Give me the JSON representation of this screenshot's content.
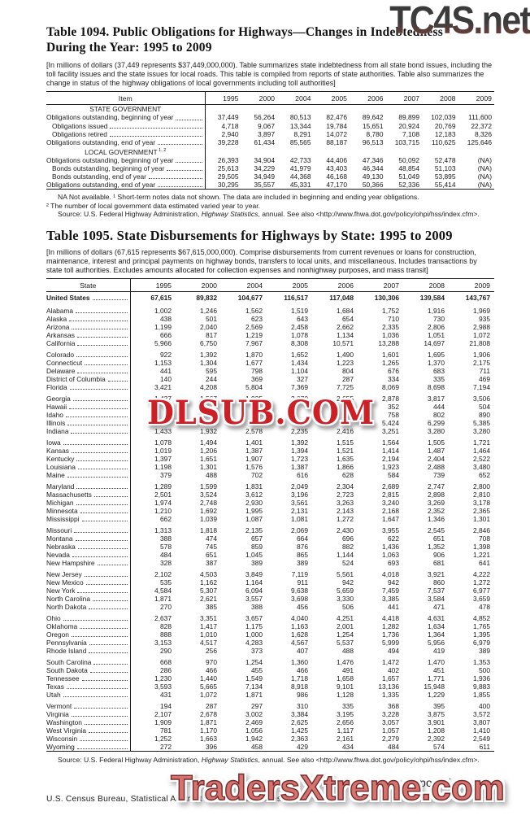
{
  "watermarks": {
    "top_right": "TC4S.net",
    "center": "DLSUB.COM",
    "bottom": "TradersXtreme.com"
  },
  "table1094": {
    "title_line1": "Table 1094. Public Obligations for Highways—Changes in Indebtedness",
    "title_line2": "During the Year: 1995 to 2009",
    "note": "[In millions of dollars (37,449 represents $37,449,000,000). Table summarizes state indebtedness from all state bond issues, including the toll facility issues and the state issues for local roads. This table is compiled from reports of state authorities. Table also summarizes the change in status of the highway obligations of local governments including toll authorities]",
    "stub_header": "Item",
    "years": [
      "1995",
      "2000",
      "2004",
      "2005",
      "2006",
      "2007",
      "2008",
      "2009"
    ],
    "rows": [
      {
        "label": "STATE GOVERNMENT",
        "type": "section",
        "values": []
      },
      {
        "label": "Obligations outstanding, beginning of year",
        "indent": 0,
        "values": [
          "37,449",
          "56,264",
          "80,513",
          "82,476",
          "89,642",
          "89,899",
          "102,039",
          "111,600"
        ]
      },
      {
        "label": "Obligations issued",
        "indent": 1,
        "values": [
          "4,718",
          "9,067",
          "13,344",
          "19,784",
          "15,651",
          "20,924",
          "20,769",
          "22,372"
        ]
      },
      {
        "label": "Obligations retired",
        "indent": 1,
        "values": [
          "2,940",
          "3,897",
          "8,291",
          "14,072",
          "8,780",
          "7,108",
          "12,183",
          "8,326"
        ]
      },
      {
        "label": "Obligations outstanding, end of year",
        "indent": 0,
        "values": [
          "39,228",
          "61,434",
          "85,565",
          "88,187",
          "96,513",
          "103,715",
          "110,625",
          "125,646"
        ]
      },
      {
        "label": "LOCAL GOVERNMENT",
        "sup": "1, 2",
        "type": "section",
        "values": []
      },
      {
        "label": "Obligations outstanding, beginning of year",
        "indent": 0,
        "values": [
          "26,393",
          "34,904",
          "42,733",
          "44,406",
          "47,346",
          "50,092",
          "52,478",
          "(NA)"
        ]
      },
      {
        "label": "Bonds outstanding, beginning of year",
        "indent": 1,
        "values": [
          "25,613",
          "34,229",
          "41,979",
          "43,403",
          "46,344",
          "48,854",
          "51,103",
          "(NA)"
        ]
      },
      {
        "label": "Bonds outstanding, end of year",
        "indent": 1,
        "values": [
          "29,505",
          "34,949",
          "44,368",
          "46,168",
          "49,130",
          "51,049",
          "53,895",
          "(NA)"
        ]
      },
      {
        "label": "Obligations outstanding, end of year",
        "indent": 0,
        "values": [
          "30,295",
          "35,557",
          "45,331",
          "47,170",
          "50,366",
          "52,336",
          "55,414",
          "(NA)"
        ]
      }
    ],
    "footnote1": "NA Not available. ¹ Short-term notes data not shown. The data are included in beginning and ending year obligations.",
    "footnote2": "² The number of local government data estimated varied year to year.",
    "source": {
      "prefix": "Source: U.S. Federal Highway Administration, ",
      "italic": "Highway Statistics",
      "suffix": ", annual. See also <http://www.fhwa.dot.gov/policy/ohpi/hss/index.cfm>."
    }
  },
  "table1095": {
    "title": "Table 1095. State Disbursements for Highways by State: 1995 to 2009",
    "note": "[In millions of dollars (67,615 represents $67,615,000,000). Comprise disbursements from current revenues or loans for construction, maintenance, interest and principal payments on highway bonds, transfers to local units, and miscellaneous. Includes transactions by state toll authorities. Excludes amounts allocated for collection expenses and nonhighway purposes, and mass transit]",
    "stub_header": "State",
    "years": [
      "1995",
      "2000",
      "2004",
      "2005",
      "2006",
      "2007",
      "2008",
      "2009"
    ],
    "rows": [
      {
        "label": "United States",
        "bold": true,
        "values": [
          "67,615",
          "89,832",
          "104,677",
          "116,517",
          "117,048",
          "130,306",
          "139,584",
          "143,767"
        ]
      },
      {
        "label": "Alabama",
        "gap": true,
        "values": [
          "1,002",
          "1,246",
          "1,562",
          "1,519",
          "1,684",
          "1,752",
          "1,916",
          "1,969"
        ]
      },
      {
        "label": "Alaska",
        "values": [
          "438",
          "501",
          "623",
          "643",
          "654",
          "710",
          "730",
          "935"
        ]
      },
      {
        "label": "Arizona",
        "values": [
          "1,199",
          "2,040",
          "2,569",
          "2,458",
          "2,662",
          "2,335",
          "2,806",
          "2,988"
        ]
      },
      {
        "label": "Arkansas",
        "values": [
          "666",
          "817",
          "1,219",
          "1,078",
          "1,134",
          "1,036",
          "1,051",
          "1,072"
        ]
      },
      {
        "label": "California",
        "values": [
          "5,966",
          "6,750",
          "7,967",
          "8,308",
          "10,571",
          "13,288",
          "14,697",
          "21,808"
        ]
      },
      {
        "label": "Colorado",
        "gap": true,
        "values": [
          "922",
          "1,392",
          "1,870",
          "1,652",
          "1,490",
          "1,601",
          "1,695",
          "1,906"
        ]
      },
      {
        "label": "Connecticut",
        "values": [
          "1,153",
          "1,304",
          "1,677",
          "1,434",
          "1,223",
          "1,265",
          "1,370",
          "2,175"
        ]
      },
      {
        "label": "Delaware",
        "values": [
          "441",
          "595",
          "798",
          "1,104",
          "804",
          "676",
          "683",
          "711"
        ]
      },
      {
        "label": "District of Columbia",
        "values": [
          "140",
          "244",
          "369",
          "327",
          "287",
          "334",
          "335",
          "469"
        ]
      },
      {
        "label": "Florida",
        "values": [
          "3,421",
          "4,208",
          "5,804",
          "7,369",
          "7,725",
          "8,069",
          "8,698",
          "7,194"
        ]
      },
      {
        "label": "Georgia",
        "gap": true,
        "values": [
          "1,437",
          "1,567",
          "1,935",
          "2,070",
          "2,655",
          "2,878",
          "3,817",
          "3,506"
        ]
      },
      {
        "label": "Hawaii",
        "values": [
          "",
          "",
          "",
          "",
          "",
          "352",
          "444",
          "504"
        ]
      },
      {
        "label": "Idaho",
        "values": [
          "",
          "",
          "",
          "",
          "",
          "758",
          "802",
          "890"
        ]
      },
      {
        "label": "Illinois",
        "values": [
          "",
          "",
          "",
          "",
          "",
          "5,424",
          "6,299",
          "5,385"
        ]
      },
      {
        "label": "Indiana",
        "values": [
          "1,433",
          "1,932",
          "2,578",
          "2,235",
          "2,416",
          "3,251",
          "3,280",
          "3,280"
        ]
      },
      {
        "label": "Iowa",
        "gap": true,
        "values": [
          "1,078",
          "1,494",
          "1,401",
          "1,392",
          "1,515",
          "1,564",
          "1,505",
          "1,721"
        ]
      },
      {
        "label": "Kansas",
        "values": [
          "1,019",
          "1,206",
          "1,387",
          "1,394",
          "1,521",
          "1,414",
          "1,487",
          "1,464"
        ]
      },
      {
        "label": "Kentucky",
        "values": [
          "1,397",
          "1,651",
          "1,907",
          "1,723",
          "1,635",
          "2,194",
          "2,404",
          "2,522"
        ]
      },
      {
        "label": "Louisiana",
        "values": [
          "1,198",
          "1,301",
          "1,576",
          "1,387",
          "1,866",
          "1,923",
          "2,488",
          "3,480"
        ]
      },
      {
        "label": "Maine",
        "values": [
          "379",
          "488",
          "702",
          "616",
          "628",
          "584",
          "739",
          "652"
        ]
      },
      {
        "label": "Maryland",
        "gap": true,
        "values": [
          "1,289",
          "1,599",
          "1,831",
          "2,049",
          "2,304",
          "2,689",
          "2,747",
          "2,800"
        ]
      },
      {
        "label": "Massachusetts",
        "values": [
          "2,501",
          "3,524",
          "3,612",
          "3,196",
          "2,723",
          "2,815",
          "2,898",
          "2,810"
        ]
      },
      {
        "label": "Michigan",
        "values": [
          "1,974",
          "2,748",
          "2,930",
          "3,561",
          "3,263",
          "3,240",
          "3,269",
          "3,178"
        ]
      },
      {
        "label": "Minnesota",
        "values": [
          "1,210",
          "1,692",
          "1,995",
          "2,131",
          "2,143",
          "2,168",
          "2,352",
          "2,365"
        ]
      },
      {
        "label": "Mississippi",
        "values": [
          "662",
          "1,039",
          "1,087",
          "1,081",
          "1,272",
          "1,647",
          "1,346",
          "1,301"
        ]
      },
      {
        "label": "Missouri",
        "gap": true,
        "values": [
          "1,313",
          "1,818",
          "2,135",
          "2,069",
          "2,430",
          "3,955",
          "2,545",
          "2,846"
        ]
      },
      {
        "label": "Montana",
        "values": [
          "388",
          "474",
          "657",
          "664",
          "696",
          "622",
          "651",
          "708"
        ]
      },
      {
        "label": "Nebraska",
        "values": [
          "578",
          "745",
          "859",
          "876",
          "882",
          "1,436",
          "1,352",
          "1,398"
        ]
      },
      {
        "label": "Nevada",
        "values": [
          "484",
          "651",
          "1,045",
          "865",
          "1,144",
          "1,063",
          "906",
          "1,221"
        ]
      },
      {
        "label": "New Hampshire",
        "values": [
          "328",
          "387",
          "389",
          "389",
          "524",
          "693",
          "681",
          "641"
        ]
      },
      {
        "label": "New Jersey",
        "gap": true,
        "values": [
          "2,102",
          "4,503",
          "3,849",
          "7,119",
          "5,561",
          "4,018",
          "3,921",
          "4,222"
        ]
      },
      {
        "label": "New Mexico",
        "values": [
          "535",
          "1,162",
          "1,164",
          "911",
          "942",
          "942",
          "860",
          "1,272"
        ]
      },
      {
        "label": "New York",
        "values": [
          "4,584",
          "5,307",
          "6,094",
          "9,638",
          "5,659",
          "7,459",
          "7,537",
          "6,977"
        ]
      },
      {
        "label": "North Carolina",
        "values": [
          "1,871",
          "2,621",
          "3,557",
          "3,698",
          "3,330",
          "3,385",
          "3,584",
          "3,659"
        ]
      },
      {
        "label": "North Dakota",
        "values": [
          "270",
          "385",
          "388",
          "456",
          "506",
          "441",
          "471",
          "478"
        ]
      },
      {
        "label": "Ohio",
        "gap": true,
        "values": [
          "2,637",
          "3,351",
          "3,657",
          "4,040",
          "4,251",
          "4,418",
          "4,631",
          "4,852"
        ]
      },
      {
        "label": "Oklahoma",
        "values": [
          "828",
          "1,417",
          "1,175",
          "1,163",
          "2,001",
          "1,282",
          "1,634",
          "1,765"
        ]
      },
      {
        "label": "Oregon",
        "values": [
          "888",
          "1,010",
          "1,000",
          "1,628",
          "1,254",
          "1,736",
          "1,364",
          "1,395"
        ]
      },
      {
        "label": "Pennsylvania",
        "values": [
          "3,153",
          "4,517",
          "4,283",
          "4,567",
          "5,537",
          "5,999",
          "5,956",
          "6,979"
        ]
      },
      {
        "label": "Rhode Island",
        "values": [
          "290",
          "256",
          "373",
          "407",
          "488",
          "494",
          "419",
          "389"
        ]
      },
      {
        "label": "South Carolina",
        "gap": true,
        "values": [
          "668",
          "970",
          "1,254",
          "1,360",
          "1,476",
          "1,472",
          "1,470",
          "1,353"
        ]
      },
      {
        "label": "South Dakota",
        "values": [
          "286",
          "466",
          "455",
          "466",
          "491",
          "402",
          "451",
          "500"
        ]
      },
      {
        "label": "Tennessee",
        "values": [
          "1,230",
          "1,440",
          "1,549",
          "1,718",
          "1,658",
          "1,657",
          "1,771",
          "1,936"
        ]
      },
      {
        "label": "Texas",
        "values": [
          "3,593",
          "5,665",
          "7,134",
          "8,918",
          "9,101",
          "13,136",
          "15,948",
          "9,883"
        ]
      },
      {
        "label": "Utah",
        "values": [
          "431",
          "1,072",
          "1,871",
          "986",
          "1,128",
          "1,335",
          "1,229",
          "1,855"
        ]
      },
      {
        "label": "Vermont",
        "gap": true,
        "values": [
          "194",
          "287",
          "297",
          "310",
          "335",
          "368",
          "395",
          "400"
        ]
      },
      {
        "label": "Virginia",
        "values": [
          "2,107",
          "2,678",
          "3,002",
          "3,384",
          "3,195",
          "3,228",
          "3,875",
          "3,572"
        ]
      },
      {
        "label": "Washington",
        "values": [
          "1,909",
          "1,871",
          "2,469",
          "2,625",
          "2,656",
          "3,057",
          "3,901",
          "3,807"
        ]
      },
      {
        "label": "West Virginia",
        "values": [
          "781",
          "1,170",
          "1,056",
          "1,425",
          "1,117",
          "1,057",
          "1,208",
          "1,410"
        ]
      },
      {
        "label": "Wisconsin",
        "values": [
          "1,252",
          "1,663",
          "1,942",
          "2,363",
          "2,161",
          "2,279",
          "2,392",
          "2,549"
        ]
      },
      {
        "label": "Wyoming",
        "values": [
          "272",
          "396",
          "458",
          "429",
          "434",
          "484",
          "574",
          "611"
        ]
      }
    ],
    "source": {
      "prefix": "Source: U.S. Federal Highway Administration, ",
      "italic": "Highway Statistics",
      "suffix": ", annual. See also <http://www.fhwa.dot.gov/policy/ohpi/hss/index.cfm>."
    }
  },
  "footer": {
    "section": "Transportation",
    "page": "687",
    "census_line": "U.S. Census Bureau, Statistical Abstract of the United States: 2012"
  }
}
